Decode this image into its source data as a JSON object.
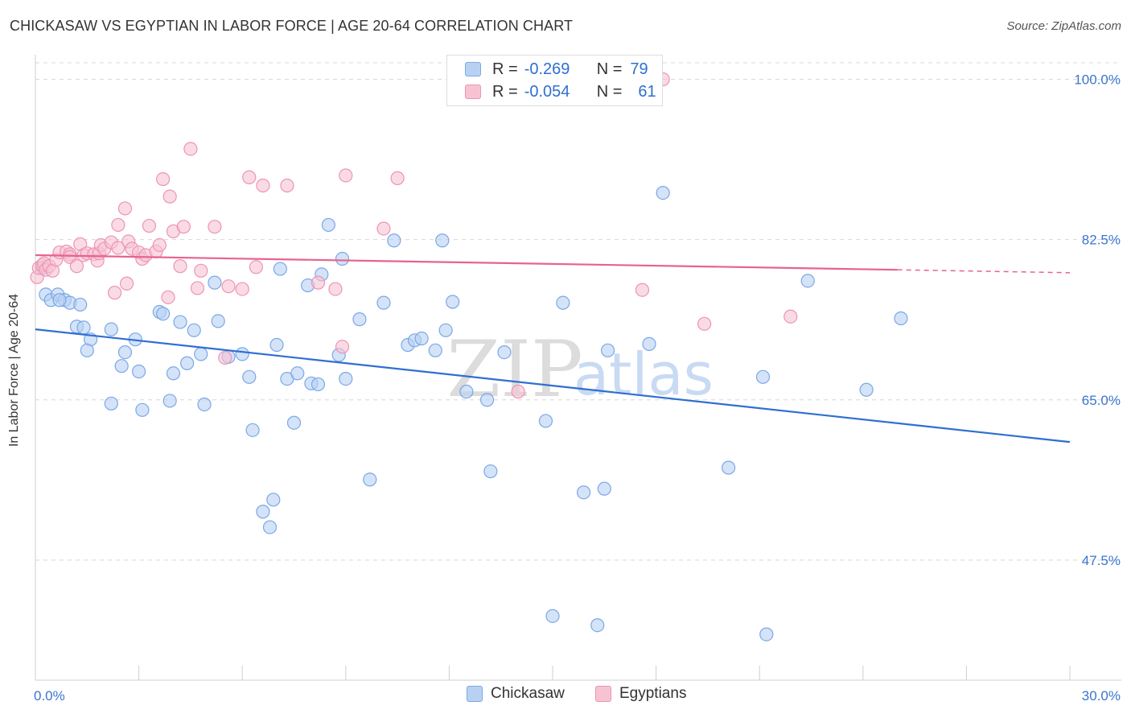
{
  "title": "CHICKASAW VS EGYPTIAN IN LABOR FORCE | AGE 20-64 CORRELATION CHART",
  "source": "Source: ZipAtlas.com",
  "legend": {
    "r_label": "R =",
    "n_label": "N =",
    "rows": [
      {
        "r": "-0.269",
        "n": "79"
      },
      {
        "r": "-0.054",
        "n": "61"
      }
    ]
  },
  "bottom_legend": [
    "Chickasaw",
    "Egyptians"
  ],
  "watermark": {
    "zip": "ZIP",
    "atlas": "atlas"
  },
  "colors": {
    "chickasaw_fill": "#b8d1f3",
    "chickasaw_stroke": "#7aa8e6",
    "chickasaw_line": "#2f6fd0",
    "egyptians_fill": "#f7c3d3",
    "egyptians_stroke": "#ee94b1",
    "egyptians_line": "#e8628f",
    "tick_label": "#3a75cf",
    "grid": "#d8d8d8"
  },
  "chart_data": {
    "type": "scatter",
    "title": "CHICKASAW VS EGYPTIAN IN LABOR FORCE | AGE 20-64 CORRELATION CHART",
    "xlabel": "",
    "ylabel": "In Labor Force | Age 20-64",
    "xlim": [
      0,
      30
    ],
    "ylim": [
      34.4,
      101.8
    ],
    "x_tick_labels": [
      "0.0%",
      "30.0%"
    ],
    "y_ticks": [
      100.0,
      82.5,
      65.0,
      47.5
    ],
    "y_tick_labels": [
      "100.0%",
      "82.5%",
      "65.0%",
      "47.5%"
    ],
    "grid": true,
    "legend_position": "top-center",
    "series": [
      {
        "name": "Chickasaw",
        "r": -0.269,
        "n": 79,
        "trend": {
          "x": [
            0,
            30
          ],
          "y": [
            72.7,
            60.4
          ]
        },
        "points": [
          [
            0.2,
            79.4
          ],
          [
            0.3,
            76.5
          ],
          [
            0.45,
            75.9
          ],
          [
            0.65,
            76.5
          ],
          [
            0.85,
            75.9
          ],
          [
            1.0,
            75.6
          ],
          [
            0.7,
            75.9
          ],
          [
            1.3,
            75.4
          ],
          [
            1.2,
            73.0
          ],
          [
            1.4,
            72.9
          ],
          [
            1.6,
            71.6
          ],
          [
            1.5,
            70.4
          ],
          [
            2.2,
            72.7
          ],
          [
            2.5,
            68.7
          ],
          [
            2.6,
            70.2
          ],
          [
            2.2,
            64.6
          ],
          [
            2.9,
            71.6
          ],
          [
            3.0,
            68.1
          ],
          [
            3.1,
            63.9
          ],
          [
            3.6,
            74.6
          ],
          [
            3.7,
            74.4
          ],
          [
            3.9,
            64.9
          ],
          [
            4.0,
            67.9
          ],
          [
            4.2,
            73.5
          ],
          [
            4.4,
            69.0
          ],
          [
            4.6,
            72.6
          ],
          [
            4.8,
            70.0
          ],
          [
            4.9,
            64.5
          ],
          [
            5.2,
            77.8
          ],
          [
            5.3,
            73.6
          ],
          [
            5.6,
            69.7
          ],
          [
            6.0,
            70.0
          ],
          [
            6.2,
            67.5
          ],
          [
            6.3,
            61.7
          ],
          [
            6.6,
            52.8
          ],
          [
            6.8,
            51.1
          ],
          [
            6.9,
            54.1
          ],
          [
            7.0,
            71.0
          ],
          [
            7.1,
            79.3
          ],
          [
            7.3,
            67.3
          ],
          [
            7.5,
            62.5
          ],
          [
            7.6,
            67.9
          ],
          [
            7.9,
            77.5
          ],
          [
            8.0,
            66.8
          ],
          [
            8.2,
            66.7
          ],
          [
            8.3,
            78.7
          ],
          [
            8.5,
            84.1
          ],
          [
            8.8,
            69.9
          ],
          [
            8.9,
            80.4
          ],
          [
            9.0,
            67.3
          ],
          [
            9.4,
            73.8
          ],
          [
            9.7,
            56.3
          ],
          [
            10.1,
            75.6
          ],
          [
            10.4,
            82.4
          ],
          [
            10.8,
            71.0
          ],
          [
            11.0,
            71.5
          ],
          [
            11.2,
            71.7
          ],
          [
            11.6,
            70.4
          ],
          [
            11.8,
            82.4
          ],
          [
            11.9,
            72.6
          ],
          [
            12.1,
            75.7
          ],
          [
            12.5,
            65.9
          ],
          [
            13.1,
            65.0
          ],
          [
            13.2,
            57.2
          ],
          [
            13.6,
            70.2
          ],
          [
            14.8,
            62.7
          ],
          [
            15.0,
            41.4
          ],
          [
            15.3,
            75.6
          ],
          [
            15.9,
            54.9
          ],
          [
            16.3,
            40.4
          ],
          [
            16.5,
            55.3
          ],
          [
            16.6,
            70.4
          ],
          [
            17.8,
            71.1
          ],
          [
            18.2,
            87.6
          ],
          [
            20.1,
            57.6
          ],
          [
            21.1,
            67.5
          ],
          [
            21.2,
            39.4
          ],
          [
            22.4,
            78.0
          ],
          [
            24.1,
            66.1
          ],
          [
            25.1,
            73.9
          ]
        ]
      },
      {
        "name": "Egyptians",
        "r": -0.054,
        "n": 61,
        "trend": {
          "x": [
            0,
            25
          ],
          "y": [
            80.8,
            79.2
          ]
        },
        "points": [
          [
            0.05,
            78.4
          ],
          [
            0.1,
            79.4
          ],
          [
            0.2,
            79.7
          ],
          [
            0.25,
            79.9
          ],
          [
            0.3,
            79.2
          ],
          [
            0.4,
            79.6
          ],
          [
            0.5,
            79.1
          ],
          [
            0.6,
            80.3
          ],
          [
            0.7,
            81.1
          ],
          [
            0.9,
            81.2
          ],
          [
            1.0,
            80.9
          ],
          [
            1.0,
            80.6
          ],
          [
            1.2,
            79.6
          ],
          [
            1.3,
            82.0
          ],
          [
            1.4,
            80.8
          ],
          [
            1.5,
            81.0
          ],
          [
            1.7,
            80.9
          ],
          [
            1.8,
            80.2
          ],
          [
            1.85,
            81.0
          ],
          [
            1.9,
            81.9
          ],
          [
            2.0,
            81.5
          ],
          [
            2.2,
            82.2
          ],
          [
            2.3,
            76.7
          ],
          [
            2.4,
            81.6
          ],
          [
            2.4,
            84.1
          ],
          [
            2.6,
            85.9
          ],
          [
            2.65,
            77.7
          ],
          [
            2.7,
            82.3
          ],
          [
            2.8,
            81.5
          ],
          [
            3.0,
            81.1
          ],
          [
            3.1,
            80.4
          ],
          [
            3.2,
            80.8
          ],
          [
            3.3,
            84.0
          ],
          [
            3.5,
            81.2
          ],
          [
            3.6,
            81.9
          ],
          [
            3.7,
            89.1
          ],
          [
            3.85,
            76.2
          ],
          [
            3.9,
            87.2
          ],
          [
            4.0,
            83.4
          ],
          [
            4.2,
            79.6
          ],
          [
            4.3,
            83.9
          ],
          [
            4.5,
            92.4
          ],
          [
            4.7,
            77.2
          ],
          [
            4.8,
            79.1
          ],
          [
            5.2,
            83.9
          ],
          [
            5.5,
            69.6
          ],
          [
            5.6,
            77.4
          ],
          [
            6.0,
            77.1
          ],
          [
            6.2,
            89.3
          ],
          [
            6.4,
            79.5
          ],
          [
            6.6,
            88.4
          ],
          [
            7.3,
            88.4
          ],
          [
            8.2,
            77.8
          ],
          [
            8.7,
            77.1
          ],
          [
            8.9,
            70.8
          ],
          [
            9.0,
            89.5
          ],
          [
            10.1,
            83.7
          ],
          [
            10.5,
            89.2
          ],
          [
            14.0,
            65.9
          ],
          [
            17.6,
            77.0
          ],
          [
            18.2,
            100.0
          ],
          [
            19.4,
            73.3
          ],
          [
            21.9,
            74.1
          ]
        ]
      }
    ]
  }
}
